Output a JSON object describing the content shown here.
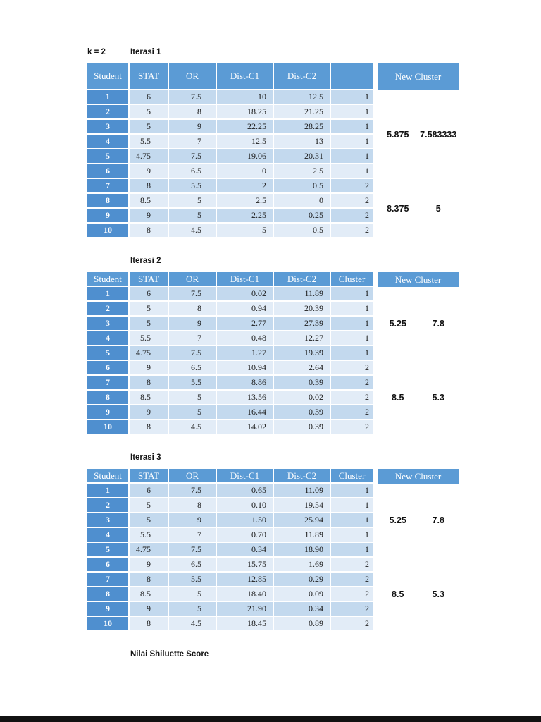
{
  "page": {
    "k_label": "k = 2",
    "footer_label": "Nilai Shiluette Score",
    "colors": {
      "header_blue": "#5b9bd5",
      "student_blue": "#4f8fcf",
      "band_dark": "#c3d9ee",
      "band_light": "#e2ecf7",
      "text": "#1b1b1b",
      "bottom_bar": "#121212"
    }
  },
  "tables": [
    {
      "title": "Iterasi 1",
      "columns": [
        "Student",
        "STAT",
        "OR",
        "Dist-C1",
        "Dist-C2",
        ""
      ],
      "new_cluster_label": "New Cluster",
      "rows": [
        [
          "1",
          "6",
          "7.5",
          "10",
          "12.5",
          "1"
        ],
        [
          "2",
          "5",
          "8",
          "18.25",
          "21.25",
          "1"
        ],
        [
          "3",
          "5",
          "9",
          "22.25",
          "28.25",
          "1"
        ],
        [
          "4",
          "5.5",
          "7",
          "12.5",
          "13",
          "1"
        ],
        [
          "5",
          "4.75",
          "7.5",
          "19.06",
          "20.31",
          "1"
        ],
        [
          "6",
          "9",
          "6.5",
          "0",
          "2.5",
          "1"
        ],
        [
          "7",
          "8",
          "5.5",
          "2",
          "0.5",
          "2"
        ],
        [
          "8",
          "8.5",
          "5",
          "2.5",
          "0",
          "2"
        ],
        [
          "9",
          "9",
          "5",
          "2.25",
          "0.25",
          "2"
        ],
        [
          "10",
          "8",
          "4.5",
          "5",
          "0.5",
          "2"
        ]
      ],
      "new_cluster_values": [
        {
          "at_row": 3.5,
          "values": [
            "5.875",
            "7.583333"
          ]
        },
        {
          "at_row": 8.5,
          "values": [
            "8.375",
            "5"
          ]
        }
      ]
    },
    {
      "title": "Iterasi 2",
      "columns": [
        "Student",
        "STAT",
        "OR",
        "Dist-C1",
        "Dist-C2",
        "Cluster"
      ],
      "new_cluster_label": "New Cluster",
      "rows": [
        [
          "1",
          "6",
          "7.5",
          "0.02",
          "11.89",
          "1"
        ],
        [
          "2",
          "5",
          "8",
          "0.94",
          "20.39",
          "1"
        ],
        [
          "3",
          "5",
          "9",
          "2.77",
          "27.39",
          "1"
        ],
        [
          "4",
          "5.5",
          "7",
          "0.48",
          "12.27",
          "1"
        ],
        [
          "5",
          "4.75",
          "7.5",
          "1.27",
          "19.39",
          "1"
        ],
        [
          "6",
          "9",
          "6.5",
          "10.94",
          "2.64",
          "2"
        ],
        [
          "7",
          "8",
          "5.5",
          "8.86",
          "0.39",
          "2"
        ],
        [
          "8",
          "8.5",
          "5",
          "13.56",
          "0.02",
          "2"
        ],
        [
          "9",
          "9",
          "5",
          "16.44",
          "0.39",
          "2"
        ],
        [
          "10",
          "8",
          "4.5",
          "14.02",
          "0.39",
          "2"
        ]
      ],
      "new_cluster_values": [
        {
          "at_row": 3,
          "values": [
            "5.25",
            "7.8"
          ]
        },
        {
          "at_row": 8,
          "values": [
            "8.5",
            "5.3"
          ]
        }
      ]
    },
    {
      "title": "Iterasi 3",
      "columns": [
        "Student",
        "STAT",
        "OR",
        "Dist-C1",
        "Dist-C2",
        "Cluster"
      ],
      "new_cluster_label": "New Cluster",
      "rows": [
        [
          "1",
          "6",
          "7.5",
          "0.65",
          "11.09",
          "1"
        ],
        [
          "2",
          "5",
          "8",
          "0.10",
          "19.54",
          "1"
        ],
        [
          "3",
          "5",
          "9",
          "1.50",
          "25.94",
          "1"
        ],
        [
          "4",
          "5.5",
          "7",
          "0.70",
          "11.89",
          "1"
        ],
        [
          "5",
          "4.75",
          "7.5",
          "0.34",
          "18.90",
          "1"
        ],
        [
          "6",
          "9",
          "6.5",
          "15.75",
          "1.69",
          "2"
        ],
        [
          "7",
          "8",
          "5.5",
          "12.85",
          "0.29",
          "2"
        ],
        [
          "8",
          "8.5",
          "5",
          "18.40",
          "0.09",
          "2"
        ],
        [
          "9",
          "9",
          "5",
          "21.90",
          "0.34",
          "2"
        ],
        [
          "10",
          "8",
          "4.5",
          "18.45",
          "0.89",
          "2"
        ]
      ],
      "new_cluster_values": [
        {
          "at_row": 3,
          "values": [
            "5.25",
            "7.8"
          ]
        },
        {
          "at_row": 8,
          "values": [
            "8.5",
            "5.3"
          ]
        }
      ]
    }
  ]
}
